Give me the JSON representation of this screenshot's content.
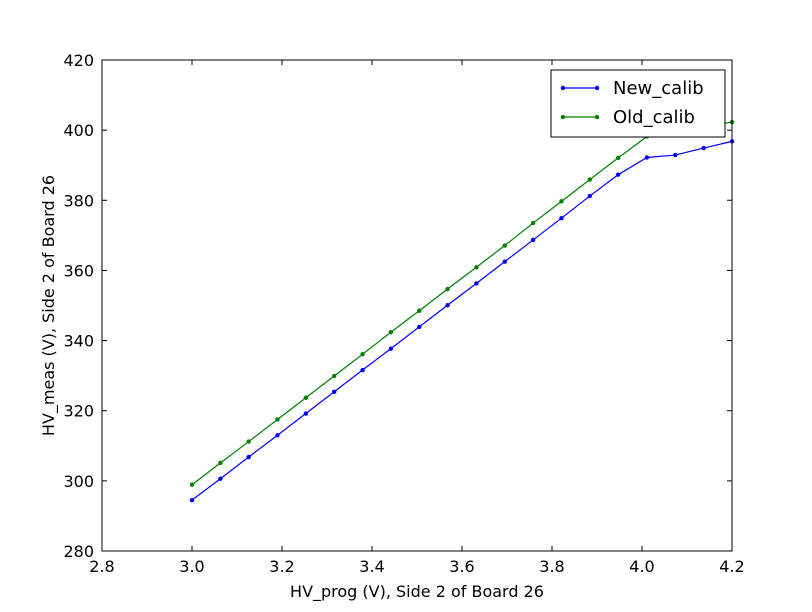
{
  "chart_data": {
    "type": "line",
    "title": "",
    "xlabel": "HV_prog (V), Side 2 of Board 26",
    "ylabel": "HV_meas (V), Side 2 of Board 26",
    "xlim": [
      2.8,
      4.2
    ],
    "ylim": [
      280,
      420
    ],
    "xticks": [
      2.8,
      3.0,
      3.2,
      3.4,
      3.6,
      3.8,
      4.0,
      4.2
    ],
    "yticks": [
      280,
      300,
      320,
      340,
      360,
      380,
      400,
      420
    ],
    "xtick_labels": [
      "2.8",
      "3.0",
      "3.2",
      "3.4",
      "3.6",
      "3.8",
      "4.0",
      "4.2"
    ],
    "ytick_labels": [
      "280",
      "300",
      "320",
      "340",
      "360",
      "380",
      "400",
      "420"
    ],
    "grid": false,
    "legend_position": "top-right",
    "series": [
      {
        "name": "New_calib",
        "color": "#0000ff",
        "x": [
          3.0,
          3.063,
          3.126,
          3.19,
          3.253,
          3.316,
          3.379,
          3.442,
          3.505,
          3.568,
          3.632,
          3.695,
          3.758,
          3.821,
          3.884,
          3.947,
          4.011,
          4.074,
          4.137,
          4.2
        ],
        "y": [
          294.5,
          300.6,
          306.8,
          313.0,
          319.2,
          325.4,
          331.6,
          337.7,
          343.9,
          350.1,
          356.3,
          362.5,
          368.7,
          374.9,
          381.2,
          387.3,
          392.2,
          392.9,
          394.9,
          396.8
        ]
      },
      {
        "name": "Old_calib",
        "color": "#008000",
        "x": [
          3.0,
          3.063,
          3.126,
          3.19,
          3.253,
          3.316,
          3.379,
          3.442,
          3.505,
          3.568,
          3.632,
          3.695,
          3.758,
          3.821,
          3.884,
          3.947,
          4.011,
          4.074,
          4.137,
          4.2
        ],
        "y": [
          298.9,
          305.1,
          311.2,
          317.5,
          323.7,
          329.9,
          336.1,
          342.4,
          348.5,
          354.7,
          360.9,
          367.1,
          373.5,
          379.7,
          385.9,
          392.1,
          398.2,
          399.5,
          400.9,
          402.3
        ]
      }
    ]
  }
}
